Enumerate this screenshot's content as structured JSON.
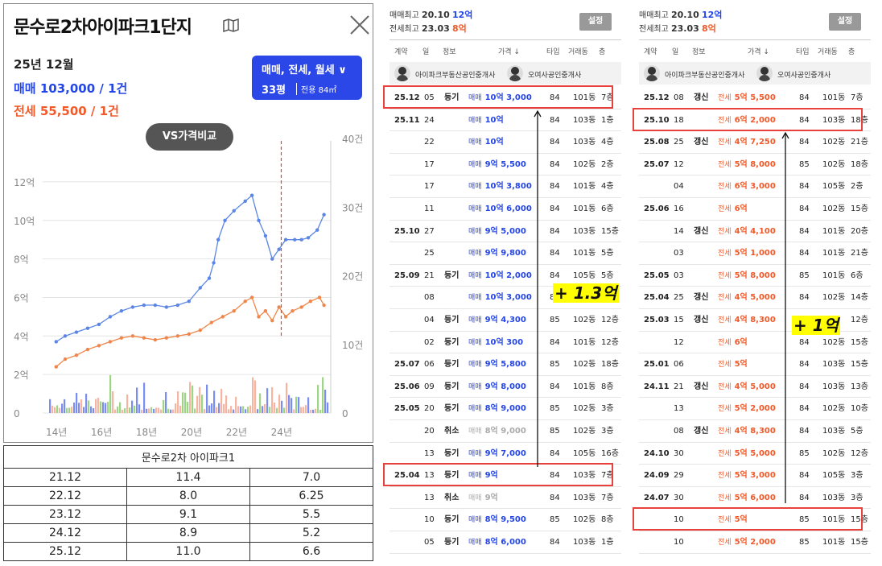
{
  "left": {
    "title": "문수로2차아이파크1단지",
    "month": "25년 12월",
    "sale": "매매 103,000 / 1건",
    "rent": "전세 55,500 / 1건",
    "filter_type": "매매, 전세, 월세 ∨",
    "filter_size": "33평",
    "filter_area": "전용 84㎡",
    "vs": "VS가격비교"
  },
  "chart_data": {
    "type": "line",
    "x_ticks": [
      "14년",
      "16년",
      "18년",
      "20년",
      "22년",
      "24년"
    ],
    "y_left_ticks": [
      "12억",
      "10억",
      "8억",
      "6억",
      "4억",
      "2억",
      "0"
    ],
    "y_right_ticks": [
      "40건",
      "30건",
      "20건",
      "10건",
      "0"
    ],
    "y_left_range": [
      0,
      12
    ],
    "y_right_range": [
      0,
      40
    ],
    "series": [
      {
        "color": "#5b86e5",
        "points": [
          [
            2014.1,
            3.7
          ],
          [
            2014.5,
            4.0
          ],
          [
            2015,
            4.2
          ],
          [
            2015.5,
            4.4
          ],
          [
            2016,
            4.6
          ],
          [
            2016.5,
            5.0
          ],
          [
            2017,
            5.3
          ],
          [
            2017.5,
            5.5
          ],
          [
            2018,
            5.6
          ],
          [
            2018.5,
            5.6
          ],
          [
            2019,
            5.5
          ],
          [
            2019.5,
            5.6
          ],
          [
            2020,
            5.8
          ],
          [
            2020.5,
            6.5
          ],
          [
            2020.9,
            7.0
          ],
          [
            2021.1,
            7.8
          ],
          [
            2021.3,
            9.0
          ],
          [
            2021.6,
            10.0
          ],
          [
            2022,
            10.5
          ],
          [
            2022.5,
            11.0
          ],
          [
            2022.8,
            11.3
          ],
          [
            2023.1,
            10.0
          ],
          [
            2023.4,
            9.2
          ],
          [
            2023.7,
            8.0
          ],
          [
            2024,
            8.5
          ],
          [
            2024.3,
            9.0
          ],
          [
            2024.7,
            9.0
          ],
          [
            2025,
            9.0
          ],
          [
            2025.3,
            9.1
          ],
          [
            2025.7,
            9.5
          ],
          [
            2026.0,
            10.3
          ]
        ]
      },
      {
        "color": "#f0864a",
        "points": [
          [
            2014.1,
            2.4
          ],
          [
            2014.5,
            2.8
          ],
          [
            2015,
            3.0
          ],
          [
            2015.5,
            3.3
          ],
          [
            2016,
            3.5
          ],
          [
            2016.5,
            3.7
          ],
          [
            2017,
            3.9
          ],
          [
            2017.5,
            4.0
          ],
          [
            2018,
            3.9
          ],
          [
            2018.5,
            3.8
          ],
          [
            2019,
            3.9
          ],
          [
            2019.5,
            4.0
          ],
          [
            2020,
            4.1
          ],
          [
            2020.5,
            4.3
          ],
          [
            2021,
            4.7
          ],
          [
            2021.5,
            5.0
          ],
          [
            2022,
            5.3
          ],
          [
            2022.5,
            5.8
          ],
          [
            2022.8,
            6.0
          ],
          [
            2023.1,
            5.0
          ],
          [
            2023.4,
            5.3
          ],
          [
            2023.7,
            4.8
          ],
          [
            2024,
            5.5
          ],
          [
            2024.3,
            5.0
          ],
          [
            2024.6,
            5.3
          ],
          [
            2025,
            5.5
          ],
          [
            2025.4,
            5.8
          ],
          [
            2025.8,
            6.0
          ],
          [
            2026.0,
            5.6
          ]
        ]
      }
    ],
    "marker_x": 2024.1
  },
  "compare_table": {
    "caption": "문수로2차 아이파크1",
    "rows": [
      [
        "21.12",
        "11.4",
        "7.0"
      ],
      [
        "22.12",
        "8.0",
        "6.25"
      ],
      [
        "23.12",
        "9.1",
        "5.5"
      ],
      [
        "24.12",
        "8.9",
        "5.2"
      ],
      [
        "25.12",
        "11.0",
        "6.6"
      ]
    ]
  },
  "p1": {
    "max_sale_label": "매매최고",
    "max_sale_date": "20.10",
    "max_sale_val": "12억",
    "max_rent_label": "전세최고",
    "max_rent_date": "23.03",
    "max_rent_val": "8억",
    "settings": "설정",
    "headers": [
      "계약",
      "일",
      "정보",
      "가격 ↓",
      "타입",
      "거래동",
      "층"
    ],
    "agent1": "아이파크부동산공인중개사",
    "agent2": "오여사공인중개사",
    "annotation": "+ 1.3억",
    "rows": [
      [
        "25.12",
        "05",
        "등기",
        "매매",
        "10억 3,000",
        "84",
        "101동",
        "7층",
        "b"
      ],
      [
        "25.11",
        "24",
        "",
        "매매",
        "10억",
        "84",
        "103동",
        "1층",
        "b"
      ],
      [
        "",
        "22",
        "",
        "매매",
        "10억",
        "84",
        "103동",
        "4층",
        "b"
      ],
      [
        "",
        "17",
        "",
        "매매",
        "9억 5,500",
        "84",
        "102동",
        "2층",
        "b"
      ],
      [
        "",
        "17",
        "",
        "매매",
        "10억 3,800",
        "84",
        "101동",
        "4층",
        "b"
      ],
      [
        "",
        "11",
        "",
        "매매",
        "10억 6,000",
        "84",
        "101동",
        "6층",
        "b"
      ],
      [
        "25.10",
        "27",
        "",
        "매매",
        "9억 5,000",
        "84",
        "103동",
        "15층",
        "b"
      ],
      [
        "",
        "25",
        "",
        "매매",
        "9억 9,800",
        "84",
        "101동",
        "5층",
        "b"
      ],
      [
        "25.09",
        "21",
        "등기",
        "매매",
        "10억 2,000",
        "84",
        "105동",
        "5층",
        "b"
      ],
      [
        "",
        "08",
        "",
        "매매",
        "10억 3,000",
        "84",
        "",
        "",
        "b"
      ],
      [
        "",
        "04",
        "등기",
        "매매",
        "9억 4,300",
        "85",
        "102동",
        "12층",
        "b"
      ],
      [
        "",
        "02",
        "등기",
        "매매",
        "10억 300",
        "84",
        "101동",
        "12층",
        "b"
      ],
      [
        "25.07",
        "06",
        "등기",
        "매매",
        "9억 5,800",
        "85",
        "102동",
        "18층",
        "b"
      ],
      [
        "25.06",
        "09",
        "등기",
        "매매",
        "9억 8,000",
        "84",
        "101동",
        "8층",
        "b"
      ],
      [
        "25.05",
        "20",
        "등기",
        "매매",
        "8억 9,000",
        "85",
        "102동",
        "3층",
        "b"
      ],
      [
        "",
        "20",
        "취소",
        "매매",
        "8억 9,000",
        "85",
        "102동",
        "3층",
        "g"
      ],
      [
        "",
        "13",
        "등기",
        "매매",
        "9억 7,000",
        "84",
        "105동",
        "16층",
        "b"
      ],
      [
        "25.04",
        "13",
        "등기",
        "매매",
        "9억",
        "84",
        "103동",
        "7층",
        "b"
      ],
      [
        "",
        "13",
        "취소",
        "매매",
        "9억",
        "84",
        "103동",
        "7층",
        "g"
      ],
      [
        "",
        "10",
        "등기",
        "매매",
        "8억 9,500",
        "85",
        "102동",
        "8층",
        "b"
      ],
      [
        "",
        "05",
        "등기",
        "매매",
        "8억 6,000",
        "84",
        "103동",
        "1층",
        "b"
      ]
    ]
  },
  "p2": {
    "max_sale_label": "매매최고",
    "max_sale_date": "20.10",
    "max_sale_val": "12억",
    "max_rent_label": "전세최고",
    "max_rent_date": "23.03",
    "max_rent_val": "8억",
    "settings": "설정",
    "headers": [
      "계약",
      "일",
      "정보",
      "가격 ↓",
      "타입",
      "거래동",
      "층"
    ],
    "agent1": "아이파크부동산공인중개사",
    "agent2": "오여사공인중개사",
    "annotation": "+ 1억",
    "rows": [
      [
        "25.12",
        "08",
        "갱신",
        "전세",
        "5억 5,500",
        "84",
        "101동",
        "7층",
        "r"
      ],
      [
        "25.10",
        "18",
        "",
        "전세",
        "6억 2,000",
        "84",
        "103동",
        "18층",
        "r"
      ],
      [
        "25.08",
        "25",
        "갱신",
        "전세",
        "4억 7,250",
        "84",
        "102동",
        "21층",
        "r"
      ],
      [
        "25.07",
        "12",
        "",
        "전세",
        "5억 8,000",
        "85",
        "102동",
        "18층",
        "r"
      ],
      [
        "",
        "04",
        "",
        "전세",
        "6억 3,000",
        "84",
        "105동",
        "2층",
        "r"
      ],
      [
        "25.06",
        "16",
        "",
        "전세",
        "6억",
        "84",
        "102동",
        "15층",
        "r"
      ],
      [
        "",
        "14",
        "갱신",
        "전세",
        "4억 4,100",
        "84",
        "101동",
        "20층",
        "r"
      ],
      [
        "",
        "03",
        "",
        "전세",
        "5억 1,000",
        "84",
        "101동",
        "21층",
        "r"
      ],
      [
        "25.05",
        "03",
        "",
        "전세",
        "5억 8,000",
        "85",
        "101동",
        "6층",
        "r"
      ],
      [
        "25.04",
        "25",
        "갱신",
        "전세",
        "4억 5,000",
        "84",
        "102동",
        "14층",
        "r"
      ],
      [
        "25.03",
        "15",
        "갱신",
        "전세",
        "4억 8,300",
        "84",
        "",
        "12층",
        "r"
      ],
      [
        "",
        "12",
        "",
        "전세",
        "6억",
        "84",
        "102동",
        "15층",
        "r"
      ],
      [
        "25.01",
        "06",
        "",
        "전세",
        "5억",
        "84",
        "103동",
        "15층",
        "r"
      ],
      [
        "24.11",
        "21",
        "갱신",
        "전세",
        "4억 5,000",
        "84",
        "103동",
        "13층",
        "r"
      ],
      [
        "",
        "13",
        "",
        "전세",
        "5억 2,000",
        "84",
        "102동",
        "10층",
        "r"
      ],
      [
        "",
        "08",
        "갱신",
        "전세",
        "4억 8,300",
        "84",
        "103동",
        "5층",
        "r"
      ],
      [
        "24.10",
        "30",
        "",
        "전세",
        "5억 5,000",
        "85",
        "102동",
        "12층",
        "r"
      ],
      [
        "24.09",
        "29",
        "",
        "전세",
        "5억 3,000",
        "84",
        "105동",
        "3층",
        "r"
      ],
      [
        "24.07",
        "30",
        "",
        "전세",
        "5억 6,000",
        "84",
        "103동",
        "3층",
        "r"
      ],
      [
        "",
        "10",
        "",
        "전세",
        "5억",
        "85",
        "101동",
        "15층",
        "r"
      ],
      [
        "",
        "10",
        "",
        "전세",
        "5억 2,000",
        "85",
        "101동",
        "15층",
        "r"
      ]
    ]
  }
}
